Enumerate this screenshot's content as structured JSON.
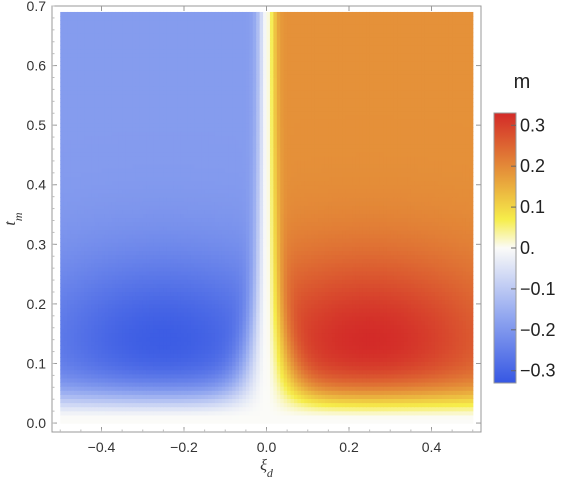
{
  "chart_data": {
    "type": "heatmap",
    "xlabel": "ξ_d",
    "ylabel": "t_m",
    "xlim": [
      -0.52,
      0.52
    ],
    "ylim": [
      -0.015,
      0.7
    ],
    "data_extent": {
      "x": [
        -0.5,
        0.5
      ],
      "y": [
        0.0,
        0.69
      ]
    },
    "x_ticks": [
      {
        "value": -0.4,
        "label": "−0.4"
      },
      {
        "value": -0.2,
        "label": "−0.2"
      },
      {
        "value": 0.0,
        "label": "0.0"
      },
      {
        "value": 0.2,
        "label": "0.2"
      },
      {
        "value": 0.4,
        "label": "0.4"
      }
    ],
    "y_ticks": [
      {
        "value": 0.0,
        "label": "0.0"
      },
      {
        "value": 0.1,
        "label": "0.1"
      },
      {
        "value": 0.2,
        "label": "0.2"
      },
      {
        "value": 0.3,
        "label": "0.3"
      },
      {
        "value": 0.4,
        "label": "0.4"
      },
      {
        "value": 0.5,
        "label": "0.5"
      },
      {
        "value": 0.6,
        "label": "0.6"
      },
      {
        "value": 0.7,
        "label": "0.7"
      }
    ],
    "colorbar": {
      "title": "m",
      "range": [
        -0.33,
        0.33
      ],
      "ticks": [
        {
          "value": 0.3,
          "label": "0.3"
        },
        {
          "value": 0.2,
          "label": "0.2"
        },
        {
          "value": 0.1,
          "label": "0.1"
        },
        {
          "value": 0.0,
          "label": "0."
        },
        {
          "value": -0.1,
          "label": "−0.1"
        },
        {
          "value": -0.2,
          "label": "−0.2"
        },
        {
          "value": -0.3,
          "label": "−0.3"
        }
      ],
      "colors": [
        {
          "value": -0.33,
          "color": "#3657e3"
        },
        {
          "value": -0.165,
          "color": "#93a8f0"
        },
        {
          "value": 0.0,
          "color": "#fbfbf8"
        },
        {
          "value": 0.07,
          "color": "#f6ed4a"
        },
        {
          "value": 0.165,
          "color": "#e8a33c"
        },
        {
          "value": 0.33,
          "color": "#d32a28"
        }
      ]
    },
    "features": [
      {
        "name": "negative-extremum",
        "x": -0.22,
        "y": 0.13,
        "value": -0.32
      },
      {
        "name": "positive-extremum",
        "x": 0.24,
        "y": 0.14,
        "value": 0.33
      },
      {
        "name": "far-field-left",
        "x": -0.45,
        "y": 0.6,
        "value": -0.19
      },
      {
        "name": "far-field-right",
        "x": 0.45,
        "y": 0.6,
        "value": 0.19
      },
      {
        "name": "near-zero-band",
        "x": 0.0,
        "y": 0.02,
        "value": 0.0
      }
    ]
  }
}
